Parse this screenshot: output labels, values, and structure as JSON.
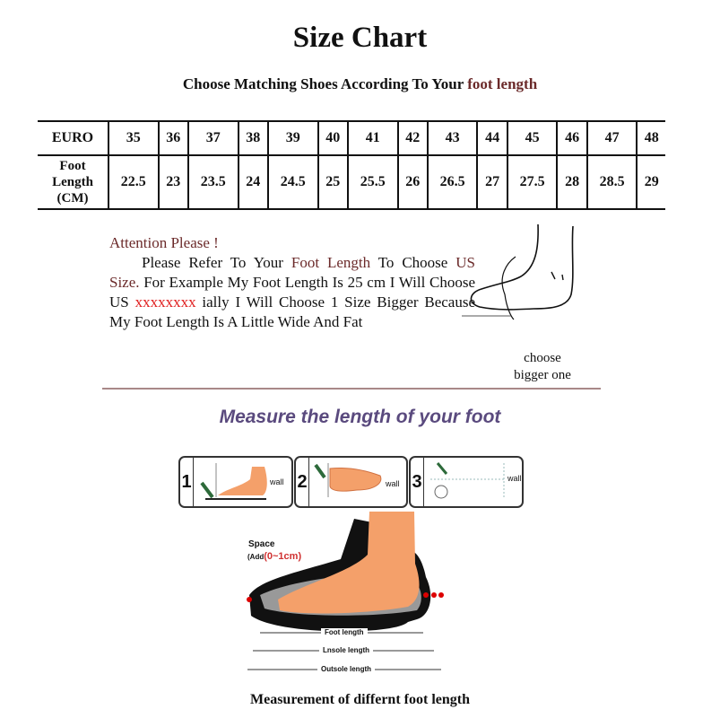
{
  "title": "Size Chart",
  "subtitle": {
    "prefix": "Choose Matching Shoes According To Your ",
    "highlight": "foot length"
  },
  "table": {
    "row1_header": "EURO",
    "row2_header": [
      "Foot",
      "Length",
      "(CM)"
    ],
    "euro": [
      "35",
      "36",
      "37",
      "38",
      "39",
      "40",
      "41",
      "42",
      "43",
      "44",
      "45",
      "46",
      "47",
      "48"
    ],
    "foot_length_cm": [
      "22.5",
      "23",
      "23.5",
      "24",
      "24.5",
      "25",
      "25.5",
      "26",
      "26.5",
      "27",
      "27.5",
      "28",
      "28.5",
      "29"
    ]
  },
  "note": {
    "heading": "Attention Please !",
    "p1": "Please Refer To Your ",
    "h1": "Foot Length",
    "p2": " To Choose ",
    "h2": "US Size.",
    "p3": " For Example My Foot Length Is 25 cm I Will Choose US ",
    "redacted": "xxxxxxxx",
    "p4": " ially I Will Choose 1 Size Bigger Because My Foot Length Is A Little Wide And Fat"
  },
  "choose_label": [
    "choose",
    "bigger one"
  ],
  "measure_heading": "Measure the length of your foot",
  "steps": [
    {
      "num": "1",
      "wall": "wall"
    },
    {
      "num": "2",
      "wall": "wall"
    },
    {
      "num": "3",
      "wall": "wall"
    }
  ],
  "diagram": {
    "space": "Space",
    "add_prefix": "(Add",
    "add_value": "(0~1cm)",
    "foot_length": "Foot length",
    "insole_length": "Lnsole length",
    "outsole_length": "Outsole length"
  },
  "caption": "Measurement of differnt foot length",
  "colors": {
    "accent": "#6b2a2a",
    "heading": "#5a4a7e",
    "skin": "#f4a06a",
    "red": "#e02020"
  }
}
